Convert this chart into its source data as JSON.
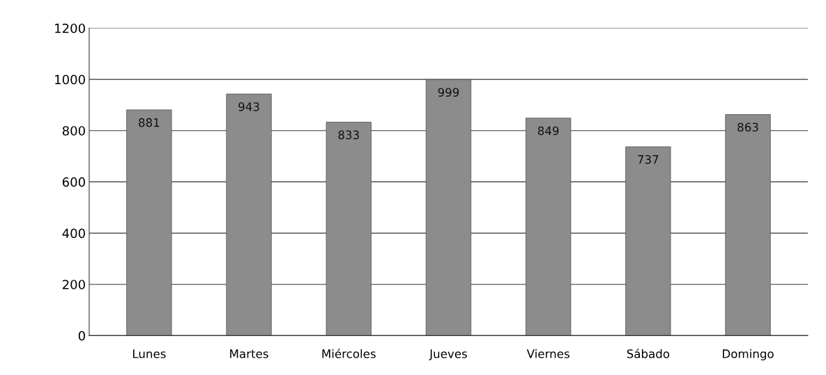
{
  "chart_data": {
    "type": "bar",
    "categories": [
      "Lunes",
      "Martes",
      "Miércoles",
      "Jueves",
      "Viernes",
      "Sábado",
      "Domingo"
    ],
    "values": [
      881,
      943,
      833,
      999,
      849,
      737,
      863
    ],
    "color": "#8c8c8c",
    "ylim": [
      0,
      1200
    ],
    "yticks": [
      0,
      200,
      400,
      600,
      800,
      1000,
      1200
    ],
    "grid": "y",
    "data_labels": true
  }
}
